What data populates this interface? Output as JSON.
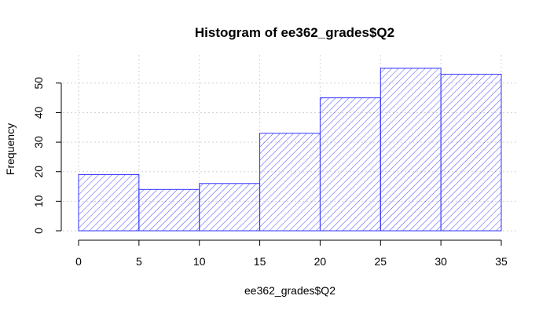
{
  "chart_data": {
    "type": "bar",
    "title": "Histogram of ee362_grades$Q2",
    "xlabel": "ee362_grades$Q2",
    "ylabel": "Frequency",
    "bins": [
      {
        "from": 0,
        "to": 5,
        "count": 19
      },
      {
        "from": 5,
        "to": 10,
        "count": 14
      },
      {
        "from": 10,
        "to": 15,
        "count": 16
      },
      {
        "from": 15,
        "to": 20,
        "count": 33
      },
      {
        "from": 20,
        "to": 25,
        "count": 45
      },
      {
        "from": 25,
        "to": 30,
        "count": 55
      },
      {
        "from": 30,
        "to": 35,
        "count": 53
      }
    ],
    "xlim": [
      0,
      35
    ],
    "ylim": [
      0,
      55
    ],
    "x_ticks": [
      0,
      5,
      10,
      15,
      20,
      25,
      30,
      35
    ],
    "y_ticks": [
      0,
      10,
      20,
      30,
      40,
      50
    ],
    "grid": true,
    "fill": "diagonal hatching",
    "bar_color": "#3333ff"
  }
}
